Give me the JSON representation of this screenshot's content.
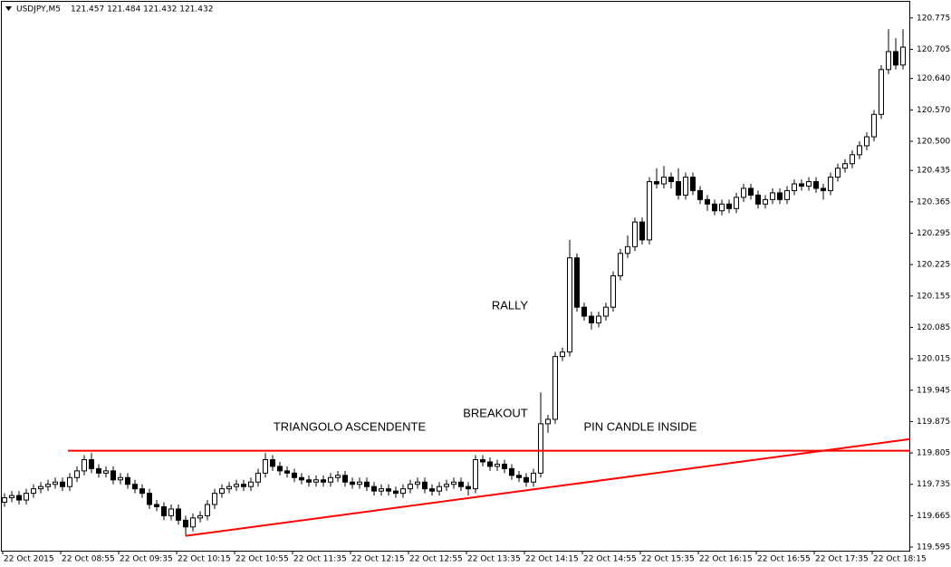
{
  "chart_data": {
    "type": "candlestick",
    "symbol": "USDJPY,M5",
    "header_prices": "121.457 121.484 121.432 121.432",
    "categories": [
      "22 Oct 2015",
      null,
      null,
      null,
      null,
      null,
      null,
      null,
      "22 Oct 08:55",
      null,
      null,
      null,
      null,
      null,
      null,
      null,
      "22 Oct 09:35",
      null,
      null,
      null,
      null,
      null,
      null,
      null,
      "22 Oct 10:15",
      null,
      null,
      null,
      null,
      null,
      null,
      null,
      "22 Oct 10:55",
      null,
      null,
      null,
      null,
      null,
      null,
      null,
      "22 Oct 11:35",
      null,
      null,
      null,
      null,
      null,
      null,
      null,
      "22 Oct 12:15",
      null,
      null,
      null,
      null,
      null,
      null,
      null,
      "22 Oct 12:55",
      null,
      null,
      null,
      null,
      null,
      null,
      null,
      "22 Oct 13:35",
      null,
      null,
      null,
      null,
      null,
      null,
      null,
      "22 Oct 14:15",
      null,
      null,
      null,
      null,
      null,
      null,
      null,
      "22 Oct 14:55",
      null,
      null,
      null,
      null,
      null,
      null,
      null,
      "22 Oct 15:35",
      null,
      null,
      null,
      null,
      null,
      null,
      null,
      "22 Oct 16:15",
      null,
      null,
      null,
      null,
      null,
      null,
      null,
      "22 Oct 16:55",
      null,
      null,
      null,
      null,
      null,
      null,
      null,
      "22 Oct 17:35",
      null,
      null,
      null,
      null,
      null,
      null,
      null,
      "22 Oct 18:15",
      null,
      null,
      null,
      null
    ],
    "open": [
      119.695,
      119.705,
      119.71,
      119.7,
      119.715,
      119.725,
      119.73,
      119.735,
      119.74,
      119.73,
      119.75,
      119.765,
      119.79,
      119.77,
      119.76,
      119.765,
      119.745,
      119.75,
      119.735,
      119.725,
      119.715,
      119.69,
      119.685,
      119.665,
      119.68,
      119.655,
      119.64,
      119.66,
      119.665,
      119.69,
      119.715,
      119.725,
      119.73,
      119.735,
      119.73,
      119.74,
      119.76,
      119.79,
      119.775,
      119.765,
      119.76,
      119.75,
      119.745,
      119.74,
      119.745,
      119.74,
      119.75,
      119.755,
      119.74,
      119.735,
      119.74,
      119.73,
      119.72,
      119.725,
      119.72,
      119.715,
      119.725,
      119.735,
      119.74,
      119.725,
      119.72,
      119.73,
      119.735,
      119.74,
      119.73,
      119.725,
      119.79,
      119.785,
      119.775,
      119.78,
      119.77,
      119.755,
      119.75,
      119.74,
      119.76,
      119.87,
      119.88,
      120.02,
      120.03,
      120.24,
      120.13,
      120.11,
      120.095,
      120.11,
      120.13,
      120.2,
      120.25,
      120.265,
      120.32,
      120.28,
      120.41,
      120.405,
      120.42,
      120.41,
      120.38,
      120.42,
      120.39,
      120.37,
      120.36,
      120.345,
      120.36,
      120.35,
      120.375,
      120.395,
      120.38,
      120.36,
      120.37,
      120.385,
      120.37,
      120.39,
      120.405,
      120.4,
      120.41,
      120.395,
      120.39,
      120.42,
      120.44,
      120.45,
      120.47,
      120.49,
      120.51,
      120.56,
      120.66,
      120.7,
      120.67
    ],
    "high": [
      119.715,
      119.72,
      119.72,
      119.725,
      119.735,
      119.74,
      119.745,
      119.75,
      119.75,
      119.76,
      119.775,
      119.8,
      119.805,
      119.78,
      119.775,
      119.775,
      119.76,
      119.76,
      119.745,
      119.735,
      119.725,
      119.7,
      119.695,
      119.69,
      119.69,
      119.665,
      119.67,
      119.675,
      119.7,
      119.725,
      119.735,
      119.74,
      119.745,
      119.745,
      119.75,
      119.77,
      119.805,
      119.8,
      119.785,
      119.775,
      119.77,
      119.76,
      119.755,
      119.755,
      119.755,
      119.76,
      119.765,
      119.765,
      119.75,
      119.75,
      119.75,
      119.74,
      119.735,
      119.735,
      119.73,
      119.735,
      119.745,
      119.75,
      119.75,
      119.735,
      119.74,
      119.745,
      119.75,
      119.75,
      119.74,
      119.8,
      119.8,
      119.795,
      119.79,
      119.79,
      119.78,
      119.765,
      119.76,
      119.77,
      119.94,
      119.89,
      120.03,
      120.04,
      120.28,
      120.25,
      120.14,
      120.12,
      120.12,
      120.14,
      120.21,
      120.26,
      120.29,
      120.33,
      120.33,
      120.42,
      120.44,
      120.445,
      120.43,
      120.44,
      120.43,
      120.43,
      120.4,
      120.38,
      120.37,
      120.37,
      120.37,
      120.385,
      120.405,
      120.405,
      120.39,
      120.38,
      120.395,
      120.395,
      120.4,
      120.415,
      120.415,
      120.42,
      120.42,
      120.405,
      120.43,
      120.45,
      120.46,
      120.48,
      120.5,
      120.52,
      120.57,
      120.67,
      120.75,
      120.73,
      120.75
    ],
    "low": [
      119.685,
      119.695,
      119.69,
      119.69,
      119.705,
      119.715,
      119.72,
      119.725,
      119.72,
      119.72,
      119.74,
      119.755,
      119.76,
      119.75,
      119.75,
      119.735,
      119.735,
      119.725,
      119.715,
      119.705,
      119.68,
      119.675,
      119.655,
      119.655,
      119.645,
      119.62,
      119.63,
      119.65,
      119.655,
      119.68,
      119.705,
      119.715,
      119.72,
      119.72,
      119.72,
      119.73,
      119.75,
      119.765,
      119.755,
      119.75,
      119.74,
      119.735,
      119.73,
      119.73,
      119.73,
      119.73,
      119.74,
      119.73,
      119.725,
      119.725,
      119.72,
      119.71,
      119.71,
      119.71,
      119.705,
      119.705,
      119.715,
      119.725,
      119.715,
      119.71,
      119.71,
      119.72,
      119.725,
      119.72,
      119.71,
      119.715,
      119.775,
      119.765,
      119.765,
      119.76,
      119.745,
      119.74,
      119.73,
      119.73,
      119.75,
      119.85,
      119.87,
      120.01,
      120.02,
      120.12,
      120.1,
      120.08,
      120.085,
      120.1,
      120.12,
      120.19,
      120.24,
      120.255,
      120.27,
      120.27,
      120.395,
      120.395,
      120.395,
      120.37,
      120.37,
      120.38,
      120.36,
      120.345,
      120.335,
      120.335,
      120.34,
      120.34,
      120.365,
      120.37,
      120.35,
      120.35,
      120.36,
      120.36,
      120.36,
      120.38,
      120.39,
      120.39,
      120.385,
      120.37,
      120.38,
      120.41,
      120.43,
      120.44,
      120.46,
      120.48,
      120.5,
      120.55,
      120.65,
      120.66,
      120.66
    ],
    "close": [
      119.705,
      119.71,
      119.7,
      119.715,
      119.725,
      119.73,
      119.735,
      119.74,
      119.73,
      119.75,
      119.765,
      119.79,
      119.77,
      119.76,
      119.765,
      119.745,
      119.75,
      119.735,
      119.725,
      119.715,
      119.69,
      119.685,
      119.665,
      119.68,
      119.655,
      119.64,
      119.66,
      119.665,
      119.69,
      119.715,
      119.725,
      119.73,
      119.735,
      119.73,
      119.74,
      119.76,
      119.79,
      119.775,
      119.765,
      119.76,
      119.75,
      119.745,
      119.74,
      119.745,
      119.74,
      119.75,
      119.755,
      119.74,
      119.735,
      119.74,
      119.73,
      119.72,
      119.725,
      119.72,
      119.715,
      119.725,
      119.735,
      119.74,
      119.725,
      119.72,
      119.73,
      119.735,
      119.74,
      119.73,
      119.725,
      119.79,
      119.785,
      119.775,
      119.78,
      119.77,
      119.755,
      119.75,
      119.74,
      119.76,
      119.87,
      119.88,
      120.02,
      120.03,
      120.24,
      120.13,
      120.11,
      120.095,
      120.11,
      120.13,
      120.2,
      120.25,
      120.265,
      120.32,
      120.28,
      120.41,
      120.405,
      120.42,
      120.41,
      120.38,
      120.42,
      120.39,
      120.37,
      120.36,
      120.345,
      120.36,
      120.35,
      120.375,
      120.395,
      120.38,
      120.36,
      120.37,
      120.385,
      120.37,
      120.39,
      120.405,
      120.4,
      120.41,
      120.395,
      120.39,
      120.42,
      120.44,
      120.45,
      120.47,
      120.49,
      120.51,
      120.56,
      120.66,
      120.7,
      120.67,
      120.71
    ],
    "ylim": [
      119.587,
      120.809
    ],
    "yticks": [
      120.775,
      120.705,
      {
        "value": 120.64,
        "label": "120.640"
      },
      {
        "value": 120.57,
        "label": "120.570"
      },
      {
        "value": 120.5,
        "label": "120.500"
      },
      120.435,
      120.365,
      120.295,
      120.225,
      120.155,
      120.085,
      120.015,
      119.945,
      119.875,
      119.805,
      119.735,
      119.665,
      119.595
    ],
    "lines": [
      {
        "color": "#ff0000",
        "x": [
          8.75,
          125
        ],
        "y": [
          119.81,
          119.81
        ]
      },
      {
        "color": "#ff0000",
        "x": [
          25,
          125
        ],
        "y": [
          119.62,
          119.836
        ]
      }
    ],
    "annotations": [
      "TRIANGOLO ASCENDENTE",
      "BREAKOUT",
      "RALLY",
      "PIN CANDLE INSIDE"
    ]
  }
}
